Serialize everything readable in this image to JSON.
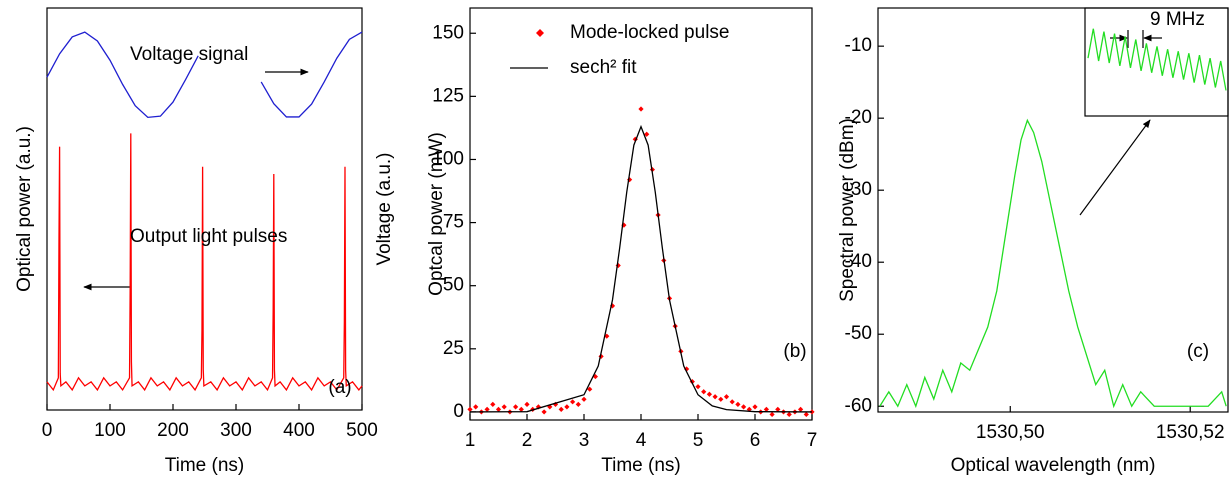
{
  "chart_data": [
    {
      "type": "line",
      "xlabel": "Time (ns)",
      "ylabel": "Optical power (a.u.)",
      "y2label": "Voltage (a.u.)",
      "xlim": [
        0,
        500
      ],
      "xticks": [
        0,
        100,
        200,
        300,
        400,
        500
      ],
      "ylim": [
        0,
        1
      ],
      "y2lim": [
        0,
        1
      ],
      "annotations": [
        "Voltage signal",
        "Output light pulses",
        "(a)"
      ],
      "series": [
        {
          "color": "#1f1fd0",
          "axis": "y2",
          "x": [
            0,
            20,
            40,
            60,
            80,
            100,
            120,
            140,
            160,
            180,
            200,
            220,
            240,
            260,
            280,
            300,
            320,
            340,
            360,
            380,
            400,
            420,
            440,
            460,
            480,
            500
          ],
          "values": [
            0.828,
            0.886,
            0.928,
            0.94,
            0.918,
            0.87,
            0.81,
            0.757,
            0.728,
            0.731,
            0.766,
            0.822,
            0.881,
            null,
            0.94,
            null,
            null,
            0.816,
            0.762,
            0.729,
            0.729,
            0.761,
            0.816,
            0.875,
            0.922,
            0.94
          ]
        },
        {
          "color": "#ff0000",
          "x": [
            0,
            10,
            18,
            19,
            20,
            21,
            22,
            30,
            40,
            50,
            60,
            70,
            80,
            90,
            100,
            110,
            120,
            131,
            132,
            133,
            134,
            135,
            145,
            155,
            165,
            175,
            185,
            195,
            205,
            215,
            225,
            235,
            245,
            246,
            247,
            248,
            249,
            260,
            270,
            280,
            290,
            300,
            310,
            320,
            330,
            340,
            350,
            358,
            359,
            360,
            361,
            362,
            370,
            380,
            390,
            400,
            410,
            420,
            430,
            440,
            450,
            460,
            471,
            472,
            473,
            474,
            475,
            485,
            495,
            500
          ],
          "values": [
            0.07,
            0.05,
            0.08,
            0.42,
            0.655,
            0.09,
            0.06,
            0.07,
            0.05,
            0.08,
            0.06,
            0.07,
            0.05,
            0.08,
            0.06,
            0.07,
            0.05,
            0.08,
            0.3,
            0.688,
            0.12,
            0.06,
            0.07,
            0.05,
            0.08,
            0.06,
            0.07,
            0.05,
            0.08,
            0.06,
            0.07,
            0.05,
            0.08,
            0.2,
            0.605,
            0.1,
            0.06,
            0.07,
            0.05,
            0.08,
            0.06,
            0.07,
            0.05,
            0.08,
            0.06,
            0.07,
            0.05,
            0.08,
            0.25,
            0.587,
            0.1,
            0.06,
            0.07,
            0.05,
            0.08,
            0.06,
            0.07,
            0.05,
            0.08,
            0.06,
            0.07,
            0.05,
            0.08,
            0.22,
            0.605,
            0.1,
            0.06,
            0.07,
            0.05,
            0.06
          ]
        }
      ]
    },
    {
      "type": "scatter",
      "xlabel": "Time (ns)",
      "ylabel": "Optcal power (mW)",
      "xlim": [
        1,
        7
      ],
      "xticks": [
        1,
        2,
        3,
        4,
        5,
        6,
        7
      ],
      "ylim": [
        -3.2,
        160
      ],
      "yticks": [
        0,
        25,
        50,
        75,
        100,
        125,
        150
      ],
      "annotations": [
        "(b)"
      ],
      "series": [
        {
          "name": "Mode-locked pulse",
          "type": "scatter",
          "color": "#ff0000",
          "x": [
            1.0,
            1.1,
            1.2,
            1.3,
            1.4,
            1.5,
            1.6,
            1.7,
            1.8,
            1.9,
            2.0,
            2.1,
            2.2,
            2.3,
            2.4,
            2.5,
            2.6,
            2.7,
            2.8,
            2.9,
            3.0,
            3.1,
            3.2,
            3.3,
            3.4,
            3.5,
            3.6,
            3.7,
            3.8,
            3.9,
            4.0,
            4.1,
            4.2,
            4.3,
            4.4,
            4.5,
            4.6,
            4.7,
            4.8,
            4.9,
            5.0,
            5.1,
            5.2,
            5.3,
            5.4,
            5.5,
            5.6,
            5.7,
            5.8,
            5.9,
            6.0,
            6.1,
            6.2,
            6.3,
            6.4,
            6.5,
            6.6,
            6.7,
            6.8,
            6.9,
            7.0
          ],
          "values": [
            1,
            2,
            0,
            1,
            3,
            1,
            2,
            0,
            2,
            1,
            3,
            1,
            2,
            0,
            2,
            3,
            1,
            2,
            4,
            3,
            5,
            9,
            14,
            22,
            30,
            42,
            58,
            74,
            92,
            108,
            120,
            110,
            96,
            78,
            60,
            45,
            34,
            24,
            17,
            12,
            10,
            8,
            7,
            6,
            5,
            6,
            4,
            3,
            2,
            1,
            2,
            0,
            1,
            -1,
            1,
            0,
            -1,
            0,
            1,
            -1,
            0
          ]
        },
        {
          "name": "sech² fit",
          "type": "line",
          "color": "#000000",
          "x": [
            1,
            2,
            3,
            3.25,
            3.5,
            3.625,
            3.75,
            3.875,
            4,
            4.125,
            4.25,
            4.375,
            4.5,
            4.75,
            5,
            5.25,
            5.5,
            6,
            7
          ],
          "values": [
            0,
            0.1,
            6.8,
            18.2,
            44.4,
            64.8,
            87.1,
            105.7,
            113,
            105.7,
            87.1,
            64.8,
            44.4,
            18.2,
            6.8,
            2.4,
            0.9,
            0.1,
            0
          ]
        }
      ]
    },
    {
      "type": "line",
      "xlabel": "Optical wavelength (nm)",
      "ylabel": "Spectral power (dBm)",
      "xlim": [
        1530.4853,
        1530.5242
      ],
      "xticks": [
        {
          "value": 1530.5,
          "label": "1530,50"
        },
        {
          "value": 1530.52,
          "label": "1530,52"
        }
      ],
      "ylim": [
        -60.8,
        -4.7
      ],
      "yticks": [
        -60,
        -50,
        -40,
        -30,
        -20,
        -10
      ],
      "annotations": [
        "(c)"
      ],
      "series": [
        {
          "color": "#22dd22",
          "x": [
            1530.4855,
            1530.4865,
            1530.4875,
            1530.4885,
            1530.4895,
            1530.4905,
            1530.4915,
            1530.4925,
            1530.4935,
            1530.4945,
            1530.4955,
            1530.4965,
            1530.4975,
            1530.4985,
            1530.4995,
            1530.5005,
            1530.5012,
            1530.5019,
            1530.5026,
            1530.5035,
            1530.5045,
            1530.5055,
            1530.5065,
            1530.5075,
            1530.5085,
            1530.5095,
            1530.5105,
            1530.5115,
            1530.5125,
            1530.5135,
            1530.5145,
            1530.516,
            1530.518,
            1530.52,
            1530.522,
            1530.5235,
            1530.524
          ],
          "values": [
            -60,
            -58,
            -60,
            -57,
            -60,
            -56,
            -59,
            -55,
            -58,
            -54,
            -55,
            -52,
            -49,
            -44,
            -36,
            -28,
            -23,
            -20.3,
            -22,
            -26,
            -32,
            -38,
            -44,
            -49,
            -53,
            -57,
            -55,
            -60,
            -57,
            -60,
            -58,
            -60,
            -60,
            -60,
            -60,
            -58,
            -60
          ]
        }
      ],
      "inset": {
        "annotation": "9 MHz",
        "color": "#22dd22",
        "ylim": [
          0,
          1
        ],
        "values": [
          0.55,
          0.85,
          0.52,
          0.82,
          0.5,
          0.8,
          0.47,
          0.77,
          0.45,
          0.74,
          0.42,
          0.7,
          0.4,
          0.67,
          0.37,
          0.64,
          0.35,
          0.62,
          0.33,
          0.6,
          0.3,
          0.58,
          0.28,
          0.55,
          0.25,
          0.52,
          0.22
        ]
      }
    }
  ]
}
